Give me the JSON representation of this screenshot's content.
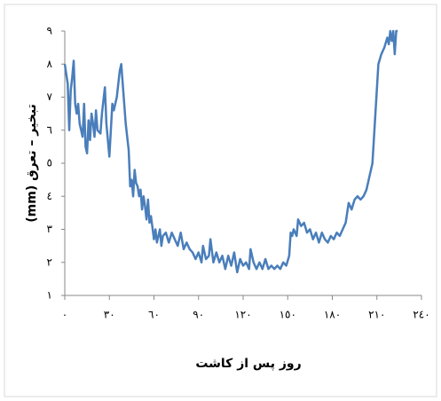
{
  "chart_data": {
    "type": "line",
    "x_label": "روز پس از کاشت",
    "y_label": "تبخیر – تعرق (mm)",
    "x": [
      0,
      2,
      3,
      4,
      5,
      6,
      7,
      8,
      9,
      10,
      12,
      13,
      14,
      15,
      16,
      17,
      18,
      19,
      20,
      21,
      22,
      24,
      25,
      27,
      28,
      29,
      30,
      31,
      32,
      33,
      35,
      37,
      38,
      39,
      41,
      43,
      44,
      45,
      46,
      47,
      48,
      49,
      50,
      51,
      52,
      53,
      54,
      55,
      56,
      57,
      58,
      60,
      61,
      62,
      63,
      64,
      65,
      66,
      68,
      70,
      72,
      74,
      76,
      78,
      80,
      82,
      84,
      86,
      88,
      90,
      92,
      93,
      95,
      97,
      98,
      100,
      102,
      104,
      106,
      108,
      110,
      112,
      114,
      116,
      118,
      120,
      122,
      124,
      125,
      127,
      129,
      131,
      133,
      135,
      137,
      139,
      141,
      143,
      145,
      147,
      149,
      151,
      152,
      153,
      154,
      156,
      157,
      159,
      161,
      163,
      165,
      167,
      169,
      171,
      173,
      175,
      177,
      179,
      181,
      183,
      185,
      187,
      189,
      191,
      193,
      195,
      197,
      199,
      201,
      203,
      205,
      207,
      209,
      211,
      213,
      215,
      217,
      218,
      219,
      220,
      221,
      222,
      223,
      224
    ],
    "series": [
      {
        "color": "#4a7ebb",
        "values": [
          8,
          7.4,
          6,
          7.2,
          7.6,
          8.1,
          6.8,
          6.5,
          6.8,
          6.2,
          5.8,
          6.8,
          5.5,
          5.3,
          6.3,
          5.7,
          6.5,
          6.2,
          5.8,
          6.6,
          6.0,
          5.9,
          6.5,
          7.3,
          6.2,
          5.7,
          5.2,
          6.0,
          6.8,
          6.6,
          7.0,
          7.8,
          8.0,
          7.4,
          6.2,
          5.4,
          4.3,
          4.5,
          4.0,
          4.8,
          4.4,
          4.3,
          4.0,
          4.2,
          3.6,
          4.0,
          3.7,
          3.3,
          3.9,
          3.2,
          3.4,
          2.7,
          3.0,
          2.6,
          2.8,
          3.0,
          2.5,
          2.8,
          2.9,
          2.6,
          2.9,
          2.7,
          2.5,
          2.9,
          2.4,
          2.6,
          2.4,
          2.3,
          2.1,
          2.3,
          2.0,
          2.5,
          2.1,
          2.2,
          2.7,
          2.0,
          2.3,
          2.0,
          2.2,
          1.8,
          2.2,
          1.9,
          2.3,
          1.7,
          2.1,
          1.9,
          2.0,
          1.8,
          2.4,
          2.0,
          1.8,
          2.0,
          1.8,
          2.1,
          1.8,
          1.9,
          1.8,
          1.9,
          1.8,
          2.0,
          1.9,
          2.2,
          2.9,
          2.8,
          3.0,
          2.8,
          3.3,
          3.1,
          3.2,
          2.9,
          3.0,
          2.7,
          2.9,
          2.6,
          2.9,
          2.7,
          2.6,
          2.8,
          2.7,
          2.9,
          2.8,
          3.0,
          3.2,
          3.8,
          3.6,
          3.9,
          4.0,
          3.9,
          4.0,
          4.2,
          4.6,
          5.0,
          6.5,
          8.0,
          8.3,
          8.5,
          8.8,
          8.6,
          9.0,
          8.7,
          9.0,
          8.3,
          9.0,
          9.0
        ]
      }
    ],
    "xlim": [
      0,
      240
    ],
    "xticks": [
      {
        "value": 0,
        "label": "٠"
      },
      {
        "value": 30,
        "label": "٣٠"
      },
      {
        "value": 60,
        "label": "٦٠"
      },
      {
        "value": 90,
        "label": "٩٠"
      },
      {
        "value": 120,
        "label": "١٢٠"
      },
      {
        "value": 150,
        "label": "١٥٠"
      },
      {
        "value": 180,
        "label": "١٨٠"
      },
      {
        "value": 210,
        "label": "٢١٠"
      },
      {
        "value": 240,
        "label": "٢٤٠"
      }
    ],
    "ylim": [
      1,
      9
    ],
    "yticks": [
      {
        "value": 1,
        "label": "١"
      },
      {
        "value": 2,
        "label": "٢"
      },
      {
        "value": 3,
        "label": "٣"
      },
      {
        "value": 4,
        "label": "٤"
      },
      {
        "value": 5,
        "label": "٥"
      },
      {
        "value": 6,
        "label": "٦"
      },
      {
        "value": 7,
        "label": "٧"
      },
      {
        "value": 8,
        "label": "٨"
      },
      {
        "value": 9,
        "label": "٩"
      }
    ],
    "grid": false
  }
}
